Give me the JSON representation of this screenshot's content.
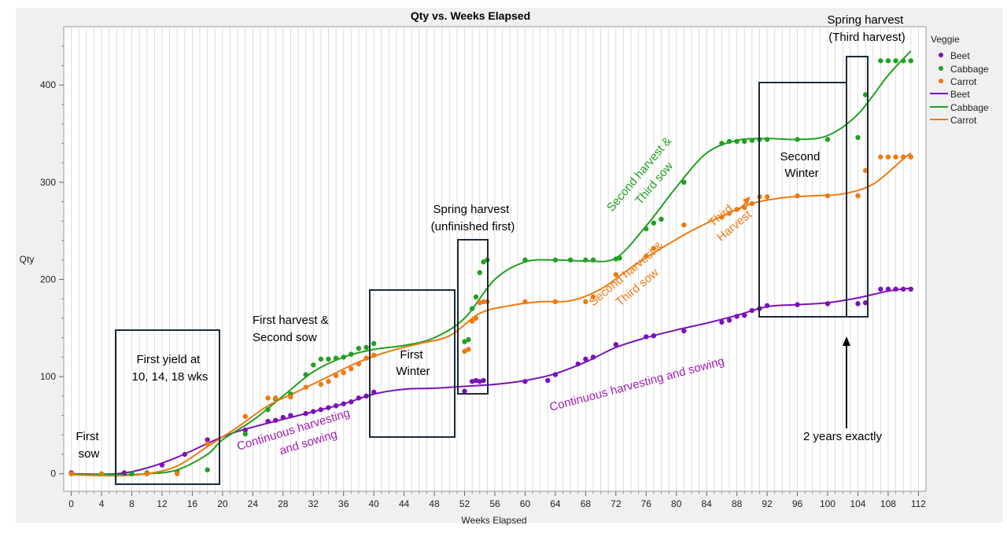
{
  "chart_data": {
    "type": "scatter",
    "title": "Qty vs. Weeks Elapsed",
    "xlabel": "Weeks Elapsed",
    "ylabel": "Qty",
    "xlim": [
      -1,
      113
    ],
    "ylim": [
      -18,
      460
    ],
    "xticks": [
      0,
      4,
      8,
      12,
      16,
      20,
      24,
      28,
      32,
      36,
      40,
      44,
      48,
      52,
      56,
      60,
      64,
      68,
      72,
      76,
      80,
      84,
      88,
      92,
      96,
      100,
      104,
      108,
      112
    ],
    "yticks": [
      0,
      100,
      200,
      300,
      400
    ],
    "grid": "vertical lines every 1 week",
    "legend": {
      "title": "Veggie",
      "placement": "top-right",
      "entries": [
        {
          "label": "Beet",
          "kind": "marker",
          "color": "#7b12b8"
        },
        {
          "label": "Cabbage",
          "kind": "marker",
          "color": "#22a022"
        },
        {
          "label": "Carrot",
          "kind": "marker",
          "color": "#ee7a10"
        },
        {
          "label": "Beet",
          "kind": "line",
          "color": "#7b12b8"
        },
        {
          "label": "Cabbage",
          "kind": "line",
          "color": "#22a022"
        },
        {
          "label": "Carrot",
          "kind": "line",
          "color": "#ee7a10"
        }
      ]
    },
    "series": [
      {
        "name": "Beet",
        "color": "#7b12b8",
        "points": [
          [
            0,
            1
          ],
          [
            7,
            1
          ],
          [
            12,
            9
          ],
          [
            15,
            20
          ],
          [
            18,
            35
          ],
          [
            23,
            45
          ],
          [
            26,
            54
          ],
          [
            27,
            55
          ],
          [
            28,
            58
          ],
          [
            29,
            60
          ],
          [
            31,
            62
          ],
          [
            32,
            64
          ],
          [
            33,
            66
          ],
          [
            34,
            68
          ],
          [
            35,
            70
          ],
          [
            36,
            72
          ],
          [
            37,
            74
          ],
          [
            38,
            78
          ],
          [
            39,
            80
          ],
          [
            40,
            84
          ],
          [
            52,
            85
          ],
          [
            53,
            95
          ],
          [
            53.5,
            96
          ],
          [
            54,
            95
          ],
          [
            54.5,
            96
          ],
          [
            60,
            95
          ],
          [
            63,
            96
          ],
          [
            64,
            102
          ],
          [
            67,
            113
          ],
          [
            68,
            118
          ],
          [
            69,
            120
          ],
          [
            72,
            133
          ],
          [
            76,
            141
          ],
          [
            77,
            142
          ],
          [
            81,
            147
          ],
          [
            86,
            156
          ],
          [
            87,
            158
          ],
          [
            88,
            162
          ],
          [
            89,
            163
          ],
          [
            90,
            168
          ],
          [
            91,
            170
          ],
          [
            92,
            173
          ],
          [
            96,
            174
          ],
          [
            100,
            175
          ],
          [
            104,
            175
          ],
          [
            105,
            176
          ],
          [
            107,
            190
          ],
          [
            108,
            190
          ],
          [
            109,
            190
          ],
          [
            110,
            190
          ],
          [
            111,
            190
          ]
        ],
        "curve": [
          [
            0,
            0
          ],
          [
            6,
            0
          ],
          [
            10,
            6
          ],
          [
            14,
            17
          ],
          [
            20,
            38
          ],
          [
            24,
            48
          ],
          [
            30,
            60
          ],
          [
            36,
            72
          ],
          [
            40,
            82
          ],
          [
            44,
            87
          ],
          [
            48,
            88
          ],
          [
            52,
            90
          ],
          [
            56,
            92
          ],
          [
            60,
            96
          ],
          [
            64,
            103
          ],
          [
            68,
            115
          ],
          [
            72,
            130
          ],
          [
            76,
            140
          ],
          [
            80,
            148
          ],
          [
            84,
            155
          ],
          [
            88,
            163
          ],
          [
            92,
            172
          ],
          [
            96,
            174
          ],
          [
            100,
            176
          ],
          [
            104,
            181
          ],
          [
            108,
            188
          ],
          [
            111,
            191
          ]
        ]
      },
      {
        "name": "Cabbage",
        "color": "#22a022",
        "points": [
          [
            0,
            0
          ],
          [
            8,
            0
          ],
          [
            10,
            1
          ],
          [
            14,
            2
          ],
          [
            18,
            4
          ],
          [
            23,
            41
          ],
          [
            26,
            66
          ],
          [
            27,
            77
          ],
          [
            29,
            82
          ],
          [
            31,
            102
          ],
          [
            32,
            112
          ],
          [
            33,
            118
          ],
          [
            34,
            118
          ],
          [
            35,
            119
          ],
          [
            36,
            120
          ],
          [
            37,
            123
          ],
          [
            38,
            129
          ],
          [
            39,
            130
          ],
          [
            40,
            134
          ],
          [
            52,
            136
          ],
          [
            52.5,
            138
          ],
          [
            53,
            170
          ],
          [
            53.5,
            182
          ],
          [
            54,
            207
          ],
          [
            54.5,
            218
          ],
          [
            55,
            220
          ],
          [
            60,
            220
          ],
          [
            64,
            220
          ],
          [
            66,
            220
          ],
          [
            68,
            220
          ],
          [
            69,
            220
          ],
          [
            72,
            221
          ],
          [
            72.5,
            222
          ],
          [
            76,
            252
          ],
          [
            77,
            258
          ],
          [
            78,
            262
          ],
          [
            81,
            300
          ],
          [
            86,
            340
          ],
          [
            87,
            342
          ],
          [
            88,
            342
          ],
          [
            89,
            342
          ],
          [
            90,
            343
          ],
          [
            91,
            344
          ],
          [
            92,
            344
          ],
          [
            96,
            344
          ],
          [
            100,
            344
          ],
          [
            104,
            346
          ],
          [
            105,
            390
          ],
          [
            107,
            425
          ],
          [
            108,
            425
          ],
          [
            109,
            425
          ],
          [
            110,
            425
          ],
          [
            111,
            425
          ]
        ],
        "curve": [
          [
            0,
            0
          ],
          [
            6,
            -1
          ],
          [
            10,
            0
          ],
          [
            14,
            4
          ],
          [
            18,
            20
          ],
          [
            20,
            35
          ],
          [
            24,
            55
          ],
          [
            28,
            80
          ],
          [
            32,
            105
          ],
          [
            36,
            120
          ],
          [
            40,
            128
          ],
          [
            44,
            132
          ],
          [
            48,
            140
          ],
          [
            52,
            160
          ],
          [
            56,
            200
          ],
          [
            60,
            218
          ],
          [
            64,
            220
          ],
          [
            68,
            219
          ],
          [
            72,
            222
          ],
          [
            76,
            255
          ],
          [
            80,
            295
          ],
          [
            84,
            330
          ],
          [
            88,
            343
          ],
          [
            92,
            345
          ],
          [
            96,
            344
          ],
          [
            100,
            348
          ],
          [
            104,
            370
          ],
          [
            108,
            410
          ],
          [
            111,
            435
          ]
        ]
      },
      {
        "name": "Carrot",
        "color": "#ee7a10",
        "points": [
          [
            0,
            0
          ],
          [
            4,
            0
          ],
          [
            10,
            0
          ],
          [
            14,
            0
          ],
          [
            18,
            31
          ],
          [
            23,
            59
          ],
          [
            26,
            78
          ],
          [
            27,
            78
          ],
          [
            29,
            79
          ],
          [
            31,
            89
          ],
          [
            33,
            92
          ],
          [
            34,
            95
          ],
          [
            35,
            101
          ],
          [
            36,
            104
          ],
          [
            37,
            108
          ],
          [
            38,
            113
          ],
          [
            39,
            119
          ],
          [
            40,
            122
          ],
          [
            52,
            126
          ],
          [
            52.5,
            128
          ],
          [
            53,
            157
          ],
          [
            53.5,
            160
          ],
          [
            54,
            176
          ],
          [
            54.5,
            177
          ],
          [
            55,
            177
          ],
          [
            60,
            177
          ],
          [
            64,
            177
          ],
          [
            68,
            177
          ],
          [
            69,
            182
          ],
          [
            72,
            205
          ],
          [
            76,
            224
          ],
          [
            77,
            232
          ],
          [
            81,
            256
          ],
          [
            86,
            264
          ],
          [
            87,
            268
          ],
          [
            88,
            272
          ],
          [
            89,
            274
          ],
          [
            90,
            278
          ],
          [
            91,
            285
          ],
          [
            92,
            285
          ],
          [
            96,
            286
          ],
          [
            100,
            286
          ],
          [
            104,
            286
          ],
          [
            105,
            312
          ],
          [
            107,
            326
          ],
          [
            108,
            326
          ],
          [
            109,
            326
          ],
          [
            110,
            326
          ],
          [
            111,
            326
          ]
        ],
        "curve": [
          [
            0,
            -1
          ],
          [
            6,
            -2
          ],
          [
            10,
            0
          ],
          [
            14,
            8
          ],
          [
            18,
            28
          ],
          [
            22,
            48
          ],
          [
            26,
            70
          ],
          [
            30,
            85
          ],
          [
            34,
            100
          ],
          [
            38,
            115
          ],
          [
            42,
            126
          ],
          [
            46,
            134
          ],
          [
            50,
            142
          ],
          [
            54,
            165
          ],
          [
            58,
            173
          ],
          [
            62,
            177
          ],
          [
            66,
            178
          ],
          [
            70,
            190
          ],
          [
            74,
            212
          ],
          [
            78,
            232
          ],
          [
            82,
            250
          ],
          [
            86,
            265
          ],
          [
            90,
            278
          ],
          [
            94,
            284
          ],
          [
            98,
            286
          ],
          [
            102,
            288
          ],
          [
            106,
            298
          ],
          [
            110,
            324
          ],
          [
            111,
            330
          ]
        ]
      }
    ],
    "annotations": [
      {
        "id": "first-sow",
        "lines": [
          "First",
          "sow"
        ],
        "color": "#000000"
      },
      {
        "id": "first-yield",
        "lines": [
          "First yield at",
          "10, 14, 18 wks"
        ],
        "color": "#000000"
      },
      {
        "id": "first-harvest",
        "lines": [
          "First harvest &",
          "Second sow"
        ],
        "color": "#000000"
      },
      {
        "id": "first-winter",
        "lines": [
          "First",
          "Winter"
        ],
        "color": "#000000"
      },
      {
        "id": "spring-harvest-1",
        "lines": [
          "Spring harvest",
          "(unfinished first)"
        ],
        "color": "#000000"
      },
      {
        "id": "second-winter",
        "lines": [
          "Second",
          "Winter"
        ],
        "color": "#000000"
      },
      {
        "id": "spring-harvest-3",
        "lines": [
          "Spring harvest",
          "(Third harvest)"
        ],
        "color": "#000000"
      },
      {
        "id": "two-years",
        "lines": [
          "2 years exactly"
        ],
        "color": "#000000"
      },
      {
        "id": "continuous-1",
        "lines": [
          "Continuous harvesting",
          "and sowing"
        ],
        "color": "#a020b0"
      },
      {
        "id": "continuous-2",
        "lines": [
          "Continuous harvesting and sowing"
        ],
        "color": "#a020b0"
      },
      {
        "id": "second-harvest-green",
        "lines": [
          "Second harvest &",
          "Third sow"
        ],
        "color": "#22a022"
      },
      {
        "id": "second-harvest-orange",
        "lines": [
          "Second harvest &",
          "Third sow"
        ],
        "color": "#ee7a10"
      },
      {
        "id": "third-harvest",
        "lines": [
          "Third",
          "Harvest"
        ],
        "color": "#ee7a10"
      }
    ]
  }
}
